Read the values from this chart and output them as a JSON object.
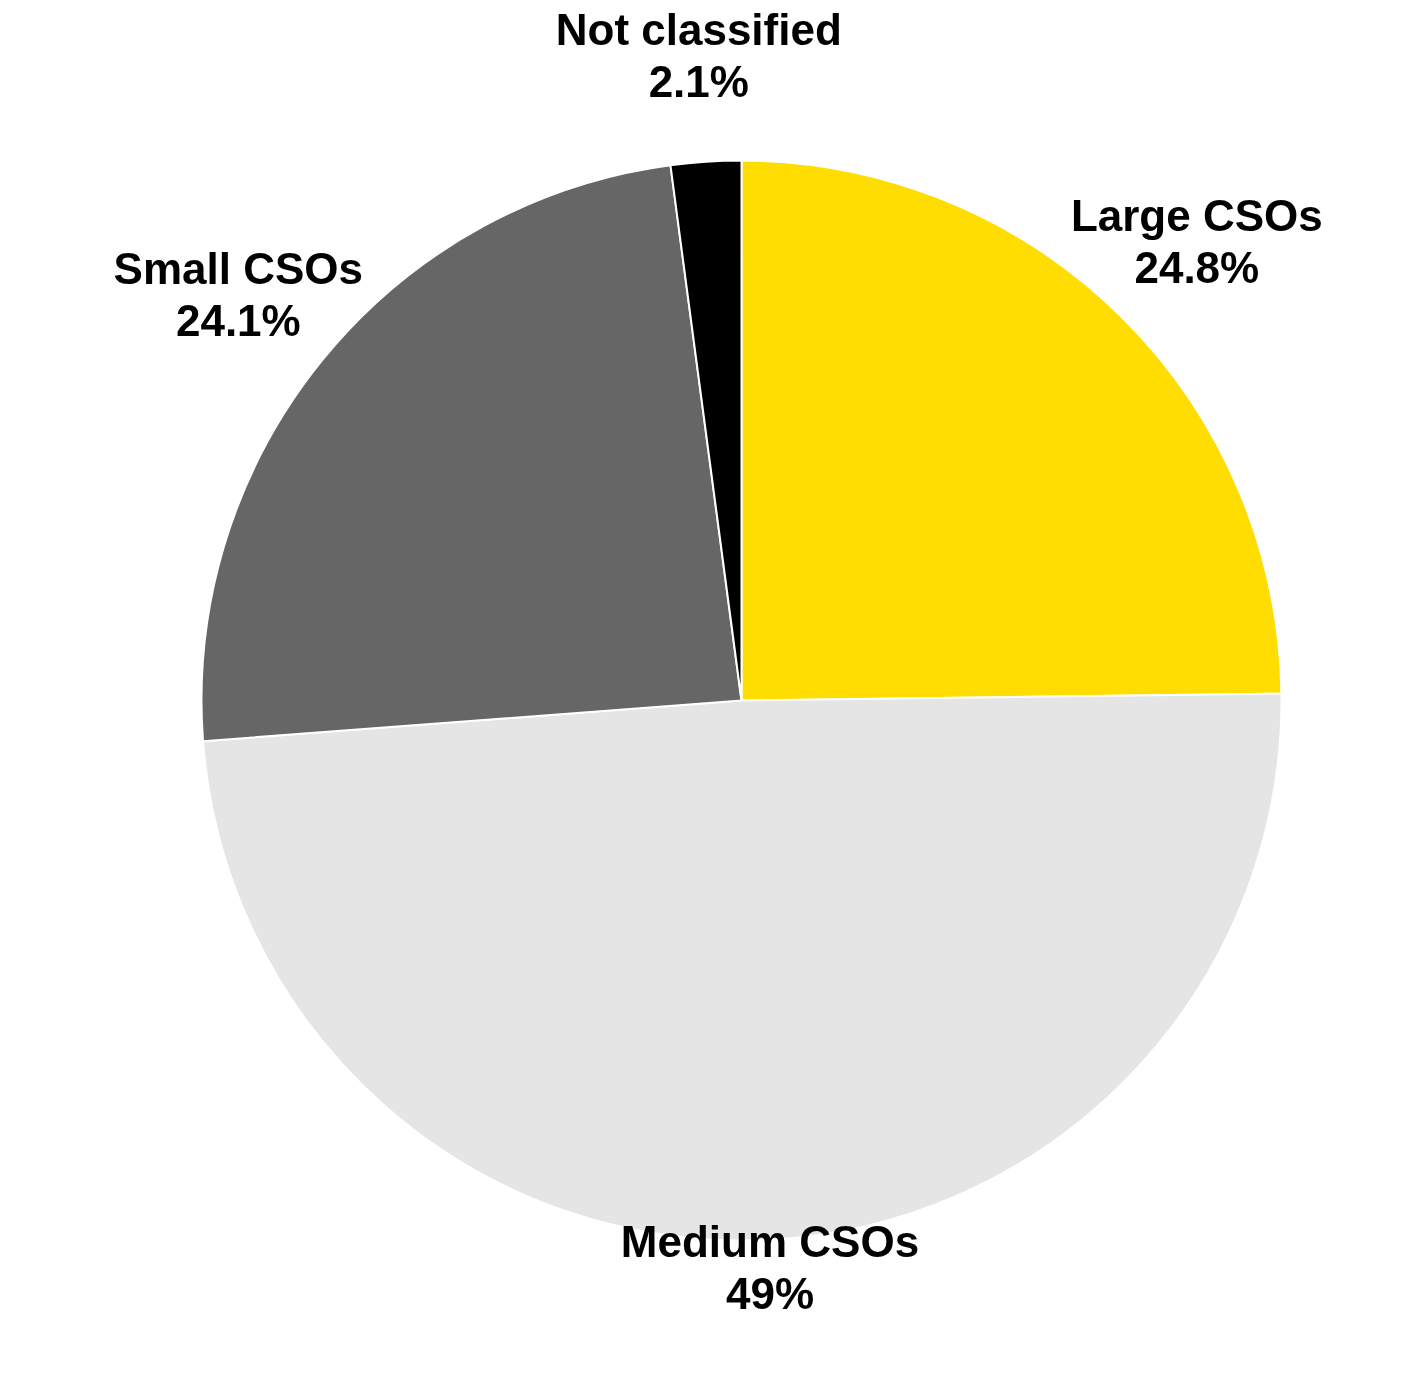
{
  "chart_data": {
    "type": "pie",
    "categories": [
      "Large CSOs",
      "Medium CSOs",
      "Small CSOs",
      "Not classified"
    ],
    "values": [
      24.8,
      49,
      24.1,
      2.1
    ],
    "value_labels": [
      "24.8%",
      "49%",
      "24.1%",
      "2.1%"
    ],
    "colors": [
      "#ffdd00",
      "#e5e5e5",
      "#666666",
      "#000000"
    ]
  }
}
